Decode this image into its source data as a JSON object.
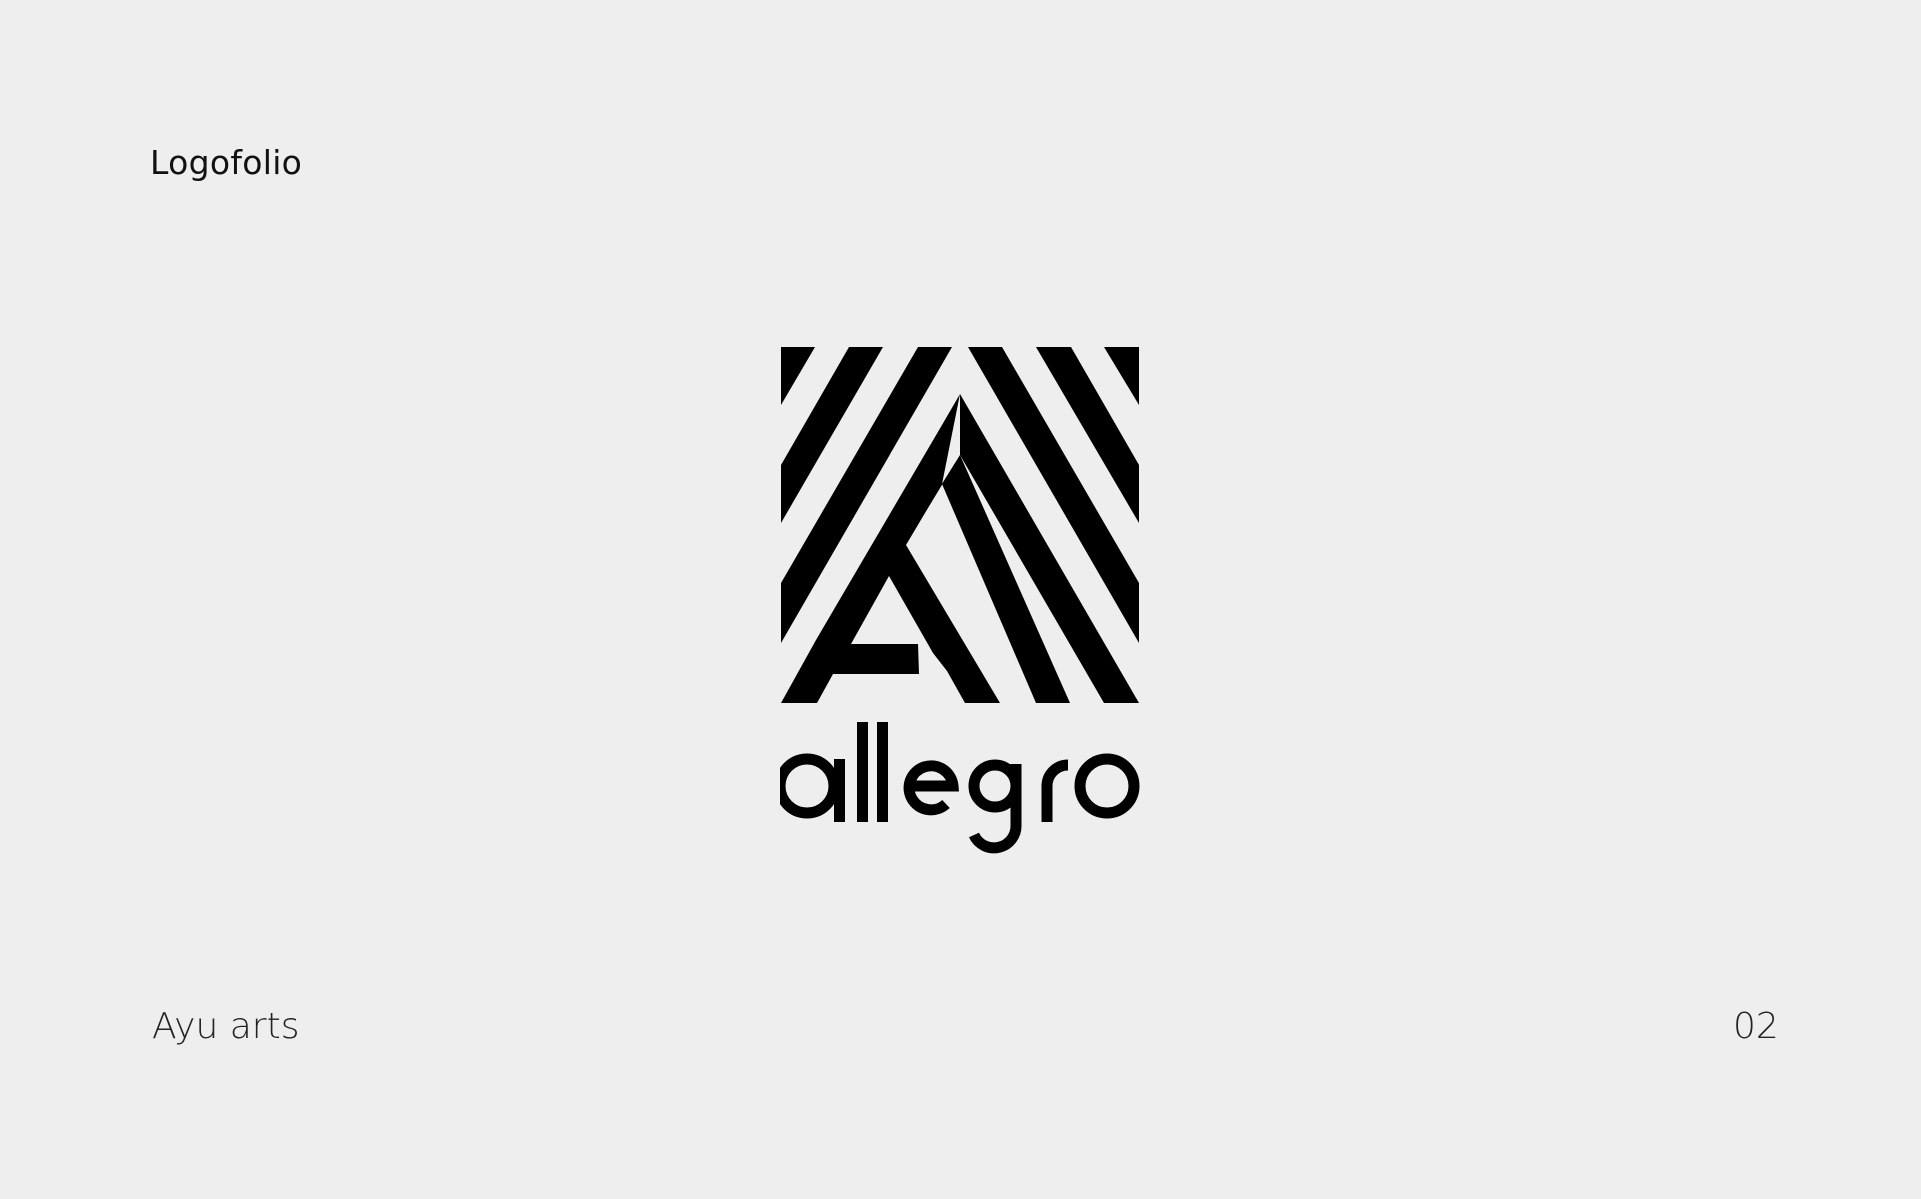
{
  "header": {
    "title": "Logofolio"
  },
  "logo": {
    "mark_icon": "allegro-striped-a-mark-icon",
    "wordmark_text": "allegro",
    "color": "#000000"
  },
  "footer": {
    "author": "Ayu arts",
    "page_number": "02"
  },
  "colors": {
    "background": "#eeeeee",
    "ink": "#000000"
  }
}
